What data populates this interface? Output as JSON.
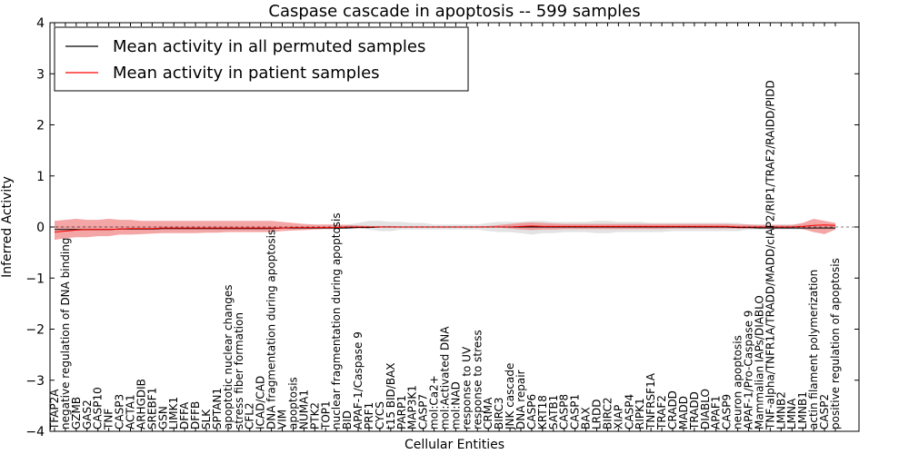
{
  "chart_data": {
    "type": "line",
    "title": "Caspase cascade in apoptosis -- 599 samples",
    "xlabel": "Cellular Entities",
    "ylabel": "Inferred Activity",
    "ylim": [
      -4,
      4
    ],
    "yticks": [
      -4,
      -3,
      -2,
      -1,
      0,
      1,
      2,
      3,
      4
    ],
    "grid": false,
    "legend_position": "top-left",
    "colors": {
      "perm_line": "#000000",
      "perm_band": "#c8c8c8",
      "patient_line": "#ff0000",
      "patient_band": "#f08080"
    },
    "categories": [
      "TFAP2A",
      "negative regulation of DNA binding",
      "GZMB",
      "GAS2",
      "CASP10",
      "TNF",
      "CASP3",
      "ACTA1",
      "ARHGDIB",
      "SREBF1",
      "GSN",
      "LIMK1",
      "DFFA",
      "DFFB",
      "SLK",
      "SPTAN1",
      "apoptotic nuclear changes",
      "stress fiber formation",
      "CFL2",
      "ICAD/CAD",
      "DNA fragmentation during apoptosis",
      "VIM",
      "apoptosis",
      "NUMA1",
      "PTK2",
      "TOP1",
      "nuclear fragmentation during apoptosis",
      "BID",
      "APAF-1/Caspase 9",
      "PRF1",
      "CYCS",
      "t15 BID/BAX",
      "PARP1",
      "MAP3K1",
      "CASP7",
      "mol:Ca2+",
      "mol:Activated DNA",
      "mol:NAD",
      "response to UV",
      "response to stress",
      "CRMA",
      "BIRC3",
      "JNK cascade",
      "DNA repair",
      "CASP6",
      "KRT18",
      "SATB1",
      "CASP8",
      "CASP1",
      "BAX",
      "LRDD",
      "BIRC2",
      "XIAP",
      "CASP4",
      "RIPK1",
      "TNFRSF1A",
      "TRAF2",
      "CRADD",
      "MADD",
      "TRADD",
      "DIABLO",
      "APAF1",
      "CASP9",
      "neuron apoptosis",
      "APAF-1/Pro-Caspase 9",
      "Mammalian IAPs/DIABLO",
      "TNF-alpha/TNFR1A/TRADD/MADD/cIAP2/RIP1/TRAF2/RAIDD/PIDD",
      "LMNB2",
      "LMNA",
      "LMNB1",
      "actin filament polymerization",
      "CASP2",
      "positive regulation of apoptosis"
    ],
    "series": [
      {
        "name": "Mean activity in all permuted samples",
        "values": [
          -0.05,
          -0.05,
          -0.05,
          -0.05,
          -0.05,
          -0.05,
          -0.04,
          -0.04,
          -0.04,
          -0.04,
          -0.03,
          -0.03,
          -0.03,
          -0.03,
          -0.03,
          -0.03,
          -0.03,
          -0.03,
          -0.03,
          -0.03,
          -0.03,
          -0.02,
          -0.02,
          -0.02,
          -0.02,
          -0.02,
          -0.02,
          -0.02,
          -0.01,
          -0.01,
          0,
          0,
          0,
          0,
          0,
          0,
          0,
          0,
          0,
          0,
          0,
          0,
          0,
          0,
          0,
          0,
          0,
          0,
          0,
          0,
          0,
          0,
          0,
          0,
          0,
          0,
          0,
          0,
          0,
          0,
          0,
          0,
          0,
          -0.01,
          -0.01,
          -0.02,
          -0.02,
          -0.02,
          -0.02,
          -0.02,
          -0.02,
          -0.02,
          -0.02
        ],
        "band_lower": [
          -0.02,
          -0.02,
          -0.02,
          -0.02,
          -0.02,
          -0.02,
          -0.02,
          -0.02,
          -0.02,
          -0.02,
          -0.02,
          -0.02,
          -0.02,
          -0.02,
          -0.02,
          -0.02,
          -0.02,
          -0.02,
          -0.02,
          -0.02,
          -0.02,
          -0.02,
          -0.02,
          -0.02,
          -0.02,
          -0.02,
          -0.02,
          -0.02,
          -0.02,
          -0.05,
          -0.08,
          -0.08,
          -0.05,
          -0.05,
          -0.05,
          -0.05,
          -0.05,
          -0.05,
          -0.05,
          -0.05,
          -0.08,
          -0.1,
          -0.1,
          -0.12,
          -0.15,
          -0.12,
          -0.12,
          -0.1,
          -0.1,
          -0.1,
          -0.12,
          -0.12,
          -0.1,
          -0.1,
          -0.1,
          -0.1,
          -0.1,
          -0.08,
          -0.08,
          -0.08,
          -0.08,
          -0.08,
          -0.08,
          -0.08,
          -0.05,
          -0.05,
          -0.05,
          -0.05,
          -0.05,
          -0.05,
          -0.05,
          -0.05,
          -0.05
        ],
        "band_upper": [
          0.02,
          0.02,
          0.02,
          0.02,
          0.02,
          0.02,
          0.02,
          0.02,
          0.02,
          0.02,
          0.02,
          0.02,
          0.02,
          0.02,
          0.02,
          0.02,
          0.02,
          0.02,
          0.02,
          0.02,
          0.02,
          0.02,
          0.02,
          0.02,
          0.02,
          0.02,
          0.02,
          0.05,
          0.08,
          0.12,
          0.12,
          0.1,
          0.1,
          0.08,
          0.08,
          0.05,
          0.05,
          0.05,
          0.05,
          0.05,
          0.08,
          0.1,
          0.1,
          0.1,
          0.12,
          0.12,
          0.1,
          0.1,
          0.1,
          0.1,
          0.12,
          0.12,
          0.1,
          0.1,
          0.1,
          0.08,
          0.08,
          0.08,
          0.08,
          0.08,
          0.08,
          0.08,
          0.08,
          0.08,
          0.05,
          0.05,
          0.05,
          0.05,
          0.05,
          0.05,
          0.05,
          0.05,
          0.05
        ]
      },
      {
        "name": "Mean activity in patient samples",
        "values": [
          -0.1,
          -0.08,
          -0.06,
          -0.05,
          -0.05,
          -0.05,
          -0.04,
          -0.03,
          -0.03,
          -0.03,
          -0.02,
          -0.02,
          -0.02,
          -0.02,
          -0.02,
          -0.02,
          -0.02,
          -0.02,
          -0.02,
          -0.02,
          -0.02,
          -0.02,
          -0.01,
          -0.01,
          -0.01,
          -0.01,
          -0.01,
          0,
          0,
          0,
          0,
          0,
          0,
          0,
          0,
          0,
          0,
          0,
          0,
          0,
          0,
          0,
          0,
          0.01,
          0.02,
          0.01,
          0.01,
          0.01,
          0.01,
          0.01,
          0.01,
          0.01,
          0.01,
          0.01,
          0.01,
          0.01,
          0.01,
          0.01,
          0.01,
          0.01,
          0.01,
          0.01,
          0.01,
          0,
          0,
          0,
          0,
          0,
          0,
          0.01,
          0.03,
          0.04,
          0.03
        ],
        "band_lower": [
          -0.25,
          -0.22,
          -0.2,
          -0.2,
          -0.18,
          -0.18,
          -0.15,
          -0.15,
          -0.14,
          -0.13,
          -0.12,
          -0.12,
          -0.12,
          -0.12,
          -0.11,
          -0.11,
          -0.1,
          -0.1,
          -0.1,
          -0.1,
          -0.1,
          -0.08,
          -0.07,
          -0.06,
          -0.05,
          -0.04,
          -0.04,
          -0.03,
          -0.02,
          -0.02,
          -0.01,
          -0.01,
          -0.01,
          -0.01,
          -0.01,
          -0.01,
          -0.01,
          -0.01,
          -0.01,
          -0.01,
          -0.01,
          -0.01,
          -0.03,
          -0.05,
          -0.06,
          -0.05,
          -0.05,
          -0.04,
          -0.04,
          -0.04,
          -0.04,
          -0.04,
          -0.04,
          -0.04,
          -0.04,
          -0.04,
          -0.04,
          -0.03,
          -0.03,
          -0.03,
          -0.03,
          -0.03,
          -0.03,
          -0.03,
          -0.03,
          -0.02,
          -0.02,
          -0.02,
          -0.02,
          -0.04,
          -0.1,
          -0.14,
          -0.05
        ],
        "band_upper": [
          0.12,
          0.14,
          0.16,
          0.14,
          0.14,
          0.16,
          0.14,
          0.14,
          0.12,
          0.12,
          0.12,
          0.12,
          0.12,
          0.12,
          0.12,
          0.12,
          0.12,
          0.12,
          0.12,
          0.12,
          0.12,
          0.1,
          0.08,
          0.06,
          0.05,
          0.05,
          0.05,
          0.04,
          0.03,
          0.02,
          0.02,
          0.02,
          0.01,
          0.01,
          0.01,
          0.01,
          0.01,
          0.01,
          0.01,
          0.01,
          0.02,
          0.04,
          0.06,
          0.08,
          0.09,
          0.08,
          0.07,
          0.06,
          0.06,
          0.06,
          0.06,
          0.06,
          0.06,
          0.06,
          0.06,
          0.06,
          0.06,
          0.06,
          0.06,
          0.06,
          0.06,
          0.06,
          0.06,
          0.05,
          0.05,
          0.04,
          0.04,
          0.04,
          0.04,
          0.08,
          0.16,
          0.12,
          0.08
        ]
      }
    ]
  }
}
